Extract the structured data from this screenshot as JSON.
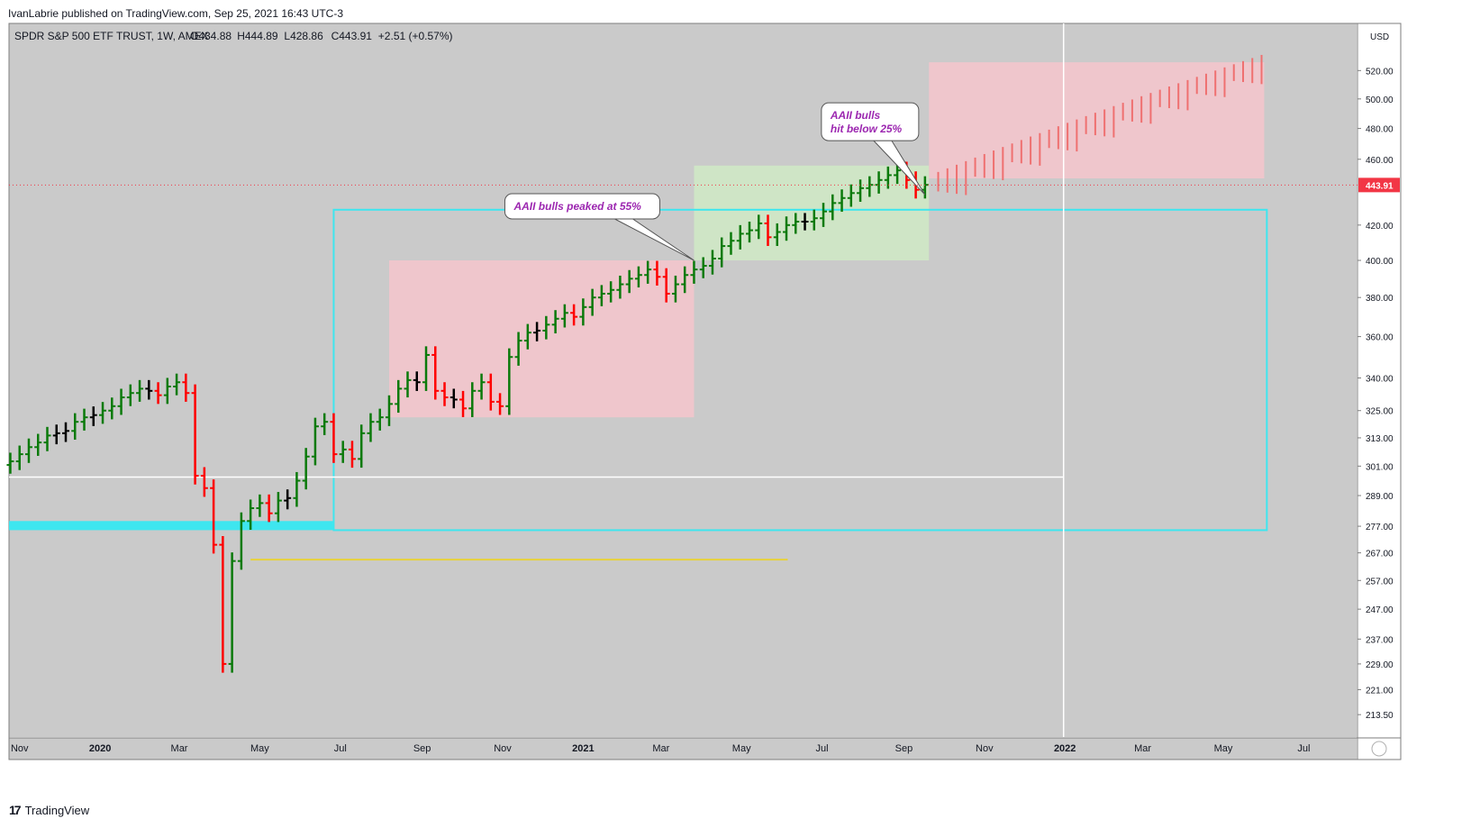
{
  "header": {
    "published_by": "IvanLabrie published on TradingView.com, Sep 25, 2021 16:43 UTC-3"
  },
  "footer": {
    "brand": "TradingView",
    "logo_glyph": "17"
  },
  "colors": {
    "background": "#cacaca",
    "bull": "#0b7a0b",
    "bear": "#ff0000",
    "neutral": "#000000",
    "cyan": "#3ee6ef",
    "pink_zone": "#f6c6cc",
    "green_zone": "#cfe8c5",
    "price_tag": "#f23645",
    "yellow_line": "#e8d23a",
    "annotation_text": "#9c27b0"
  },
  "chart_data": {
    "type": "ohlc",
    "symbol_line": "SPDR S&P 500 ETF TRUST, 1W, AMEX",
    "ohlc_readout": {
      "o": "O434.88",
      "h": "H444.89",
      "l": "L428.86",
      "c": "C443.91",
      "change": "+2.51 (+0.57%)"
    },
    "currency": "USD",
    "y_scale": "log",
    "ylim": [
      207,
      555
    ],
    "y_ticks": [
      520.0,
      500.0,
      480.0,
      460.0,
      420.0,
      400.0,
      380.0,
      360.0,
      340.0,
      325.0,
      313.0,
      301.0,
      289.0,
      277.0,
      267.0,
      257.0,
      247.0,
      237.0,
      229.0,
      221.0,
      213.5
    ],
    "last_price": "443.91",
    "x_ticks": [
      {
        "label": "Nov",
        "date": "2019-11-01"
      },
      {
        "label": "2020",
        "date": "2020-01-01"
      },
      {
        "label": "Mar",
        "date": "2020-03-01"
      },
      {
        "label": "May",
        "date": "2020-05-01"
      },
      {
        "label": "Jul",
        "date": "2020-07-01"
      },
      {
        "label": "Sep",
        "date": "2020-09-01"
      },
      {
        "label": "Nov",
        "date": "2020-11-01"
      },
      {
        "label": "2021",
        "date": "2021-01-01"
      },
      {
        "label": "Mar",
        "date": "2021-03-01"
      },
      {
        "label": "May",
        "date": "2021-05-01"
      },
      {
        "label": "Jul",
        "date": "2021-07-01"
      },
      {
        "label": "Sep",
        "date": "2021-09-01"
      },
      {
        "label": "Nov",
        "date": "2021-11-01"
      },
      {
        "label": "2022",
        "date": "2022-01-01"
      },
      {
        "label": "Mar",
        "date": "2022-03-01"
      },
      {
        "label": "May",
        "date": "2022-05-01"
      },
      {
        "label": "Jul",
        "date": "2022-07-01"
      }
    ],
    "x_range": [
      "2019-10-24",
      "2022-08-10"
    ],
    "weekly_closes_start": "2019-10-25",
    "weekly_closes": [
      303,
      306,
      309,
      311,
      314,
      315,
      316,
      320,
      322,
      323,
      325,
      327,
      331,
      333,
      335,
      334,
      332,
      336,
      338,
      333,
      297,
      292,
      270,
      229,
      264,
      279,
      284,
      286,
      282,
      287,
      288,
      295,
      305,
      318,
      320,
      306,
      308,
      304,
      315,
      320,
      322,
      328,
      335,
      339,
      338,
      351,
      334,
      331,
      330,
      326,
      334,
      338,
      329,
      327,
      350,
      358,
      362,
      363,
      366,
      369,
      372,
      370,
      375,
      380,
      382,
      384,
      387,
      390,
      392,
      395,
      391,
      382,
      387,
      392,
      395,
      397,
      401,
      408,
      411,
      415,
      417,
      421,
      413,
      416,
      420,
      422,
      422,
      424,
      428,
      433,
      436,
      439,
      442,
      444,
      447,
      450,
      453,
      447,
      441,
      444
    ],
    "signals": [
      {
        "name": "cyan_box",
        "from": "2020-06-26",
        "to": "2022-06-03",
        "high": 429,
        "low": 275.5
      },
      {
        "name": "cyan_band",
        "from": "2019-10-24",
        "to": "2020-06-26",
        "high": 279,
        "low": 275.5
      },
      {
        "name": "pink_zone_2020",
        "from": "2020-08-07",
        "to": "2021-03-26",
        "high": 400,
        "low": 322
      },
      {
        "name": "green_zone_2021",
        "from": "2021-03-26",
        "to": "2021-09-20",
        "high": 456,
        "low": 400
      },
      {
        "name": "pink_projection",
        "from": "2021-09-20",
        "to": "2022-06-01",
        "high": 526,
        "low": 448
      },
      {
        "name": "white_horizontal",
        "from": "2019-10-24",
        "to": "2021-12-31",
        "value": 296.5
      },
      {
        "name": "white_vertical",
        "date": "2021-12-31"
      },
      {
        "name": "yellow_line",
        "from": "2020-04-24",
        "to": "2021-06-05",
        "value": 264.5
      }
    ],
    "annotations": [
      {
        "text": "AAII bulls peaked at 55%",
        "date": "2021-03-26",
        "value": 400
      },
      {
        "text": "AAII bulls",
        "text2": "hit below 25%",
        "date": "2021-09-17",
        "value": 438
      }
    ]
  }
}
